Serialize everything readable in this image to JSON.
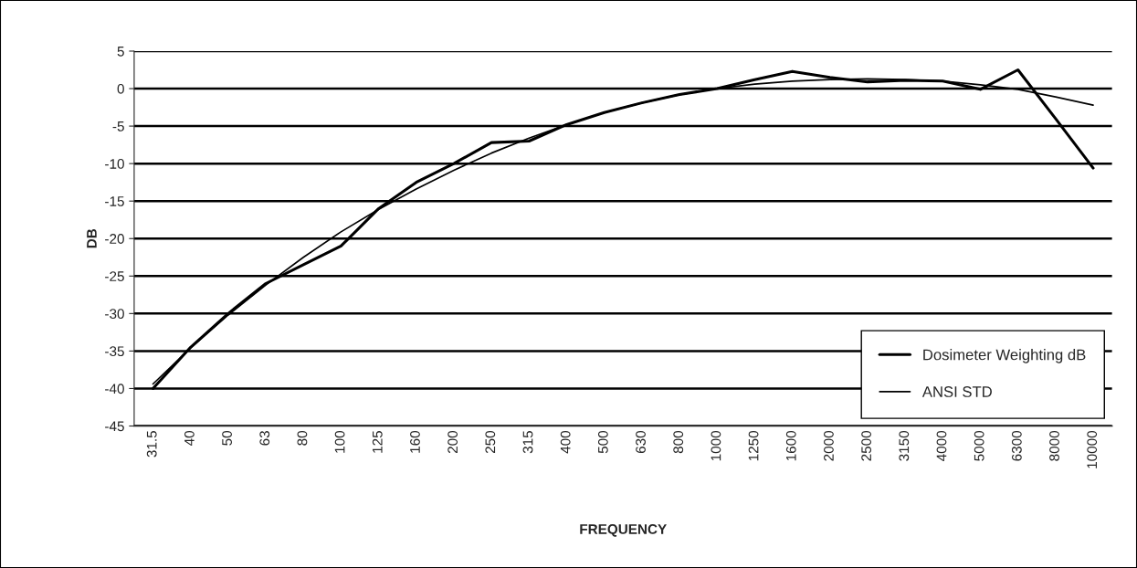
{
  "chart_data": {
    "type": "line",
    "xlabel": "FREQUENCY",
    "ylabel": "DB",
    "categories": [
      "31.5",
      "40",
      "50",
      "63",
      "80",
      "100",
      "125",
      "160",
      "200",
      "250",
      "315",
      "400",
      "500",
      "630",
      "800",
      "1000",
      "1250",
      "1600",
      "2000",
      "2500",
      "3150",
      "4000",
      "5000",
      "6300",
      "8000",
      "10000"
    ],
    "series": [
      {
        "name": "Dosimeter Weighting dB",
        "color": "#000000",
        "values": [
          -40,
          -34.5,
          -30,
          -26,
          -23.5,
          -21,
          -16,
          -12.5,
          -10,
          -7.2,
          -7,
          -4.8,
          -3.2,
          -1.9,
          -0.8,
          0,
          1.2,
          2.3,
          1.5,
          0.9,
          1.1,
          1,
          -0.1,
          2.5,
          -4,
          -10.6
        ]
      },
      {
        "name": "ANSI STD",
        "color": "#000000",
        "values": [
          -39.4,
          -34.6,
          -30.2,
          -26.2,
          -22.5,
          -19.1,
          -16.1,
          -13.4,
          -10.9,
          -8.6,
          -6.6,
          -4.8,
          -3.2,
          -1.9,
          -0.8,
          0,
          0.6,
          1,
          1.2,
          1.3,
          1.2,
          1,
          0.5,
          -0.1,
          -1.1,
          -2.2
        ]
      }
    ],
    "ylim": [
      -45,
      5
    ],
    "yticks": [
      -45,
      -40,
      -35,
      -30,
      -25,
      -20,
      -15,
      -10,
      -5,
      0,
      5
    ],
    "grid": "y",
    "legend": "bottom right",
    "marker": "none",
    "line_style": "solid"
  }
}
